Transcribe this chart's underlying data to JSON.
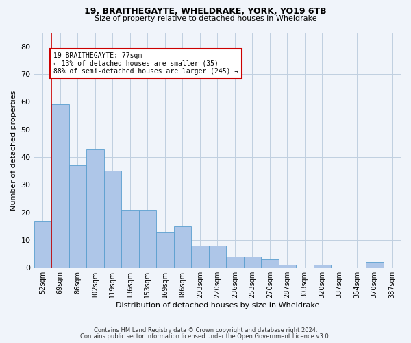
{
  "title1": "19, BRAITHEGAYTE, WHELDRAKE, YORK, YO19 6TB",
  "title2": "Size of property relative to detached houses in Wheldrake",
  "xlabel": "Distribution of detached houses by size in Wheldrake",
  "ylabel": "Number of detached properties",
  "footer1": "Contains HM Land Registry data © Crown copyright and database right 2024.",
  "footer2": "Contains public sector information licensed under the Open Government Licence v3.0.",
  "categories": [
    "52sqm",
    "69sqm",
    "86sqm",
    "102sqm",
    "119sqm",
    "136sqm",
    "153sqm",
    "169sqm",
    "186sqm",
    "203sqm",
    "220sqm",
    "236sqm",
    "253sqm",
    "270sqm",
    "287sqm",
    "303sqm",
    "320sqm",
    "337sqm",
    "354sqm",
    "370sqm",
    "387sqm"
  ],
  "values": [
    17,
    59,
    37,
    43,
    35,
    21,
    21,
    13,
    15,
    8,
    8,
    4,
    4,
    3,
    1,
    0,
    1,
    0,
    0,
    2,
    0
  ],
  "bar_color": "#aec6e8",
  "bar_edge_color": "#5a9fcf",
  "ylim": [
    0,
    85
  ],
  "yticks": [
    0,
    10,
    20,
    30,
    40,
    50,
    60,
    70,
    80
  ],
  "annotation_line1": "19 BRAITHEGAYTE: 77sqm",
  "annotation_line2": "← 13% of detached houses are smaller (35)",
  "annotation_line3": "88% of semi-detached houses are larger (245) →",
  "box_edge_color": "#cc0000",
  "vline_color": "#cc0000",
  "vline_x_idx": 1,
  "background_color": "#f0f4fa",
  "grid_color": "#c0cfe0",
  "title1_fontsize": 9,
  "title2_fontsize": 8,
  "ylabel_fontsize": 8,
  "xlabel_fontsize": 8
}
